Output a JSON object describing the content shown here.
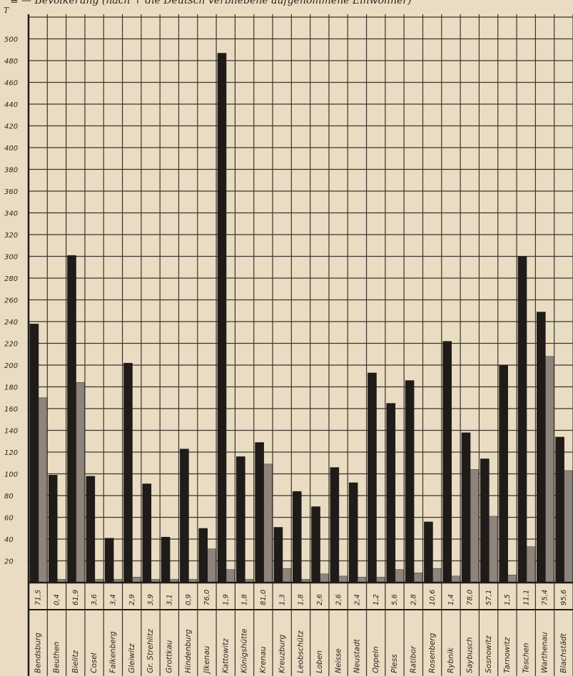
{
  "chart_data": {
    "type": "bar",
    "title": "≡ —   Bevölkerung (nach ↑ die Deutsch verbliebene aufgenommene Einwohner)",
    "y_unit_label": "T",
    "ylim": [
      0,
      520
    ],
    "y_ticks": [
      "500",
      "480",
      "460",
      "440",
      "420",
      "400",
      "380",
      "360",
      "340",
      "320",
      "300",
      "280",
      "260",
      "240",
      "220",
      "200",
      "180",
      "160",
      "140",
      "120",
      "100",
      "80",
      "60",
      "40",
      "20"
    ],
    "categories": [
      "Bendsburg",
      "Beuthen",
      "Bielitz",
      "Cosel",
      "Falkenberg",
      "Gleiwitz",
      "Gr. Strehlitz",
      "Grottkau",
      "Hindenburg",
      "Jlkenau",
      "Kattowitz",
      "Königshütte",
      "Krenau",
      "Kreuzburg",
      "Leobschütz",
      "Loben",
      "Neisse",
      "Neustadt",
      "Oppeln",
      "Pless",
      "Ratibor",
      "Rosenberg",
      "Rybnik",
      "Saybusch",
      "Sosnowitz",
      "Tarnowitz",
      "Teschen",
      "Warthenau",
      "Blachstädt"
    ],
    "percent_labels": [
      "71,5",
      "0,4",
      "61,9",
      "3,6",
      "3,4",
      "2,9",
      "3,9",
      "3,1",
      "0,9",
      "76,0",
      "1,9",
      "1,8",
      "81,0",
      "1,3",
      "1,8",
      "2,6",
      "2,6",
      "2,4",
      "1,2",
      "5,6",
      "2,8",
      "10,6",
      "1,4",
      "78,0",
      "57,1",
      "1,5",
      "11,1",
      "75,4",
      "95,6"
    ],
    "grid": true,
    "series": [
      {
        "color": "#1f1b19",
        "values": [
          238,
          99,
          301,
          98,
          41,
          202,
          91,
          42,
          123,
          50,
          487,
          116,
          129,
          51,
          84,
          70,
          106,
          92,
          193,
          165,
          186,
          56,
          222,
          138,
          114,
          200,
          300,
          249,
          134
        ]
      },
      {
        "color": "#8d857b",
        "values": [
          170,
          3,
          184,
          3,
          3,
          5,
          3,
          3,
          3,
          31,
          12,
          3,
          109,
          13,
          3,
          8,
          6,
          5,
          5,
          12,
          9,
          13,
          6,
          104,
          61,
          7,
          33,
          208,
          103
        ]
      }
    ]
  }
}
